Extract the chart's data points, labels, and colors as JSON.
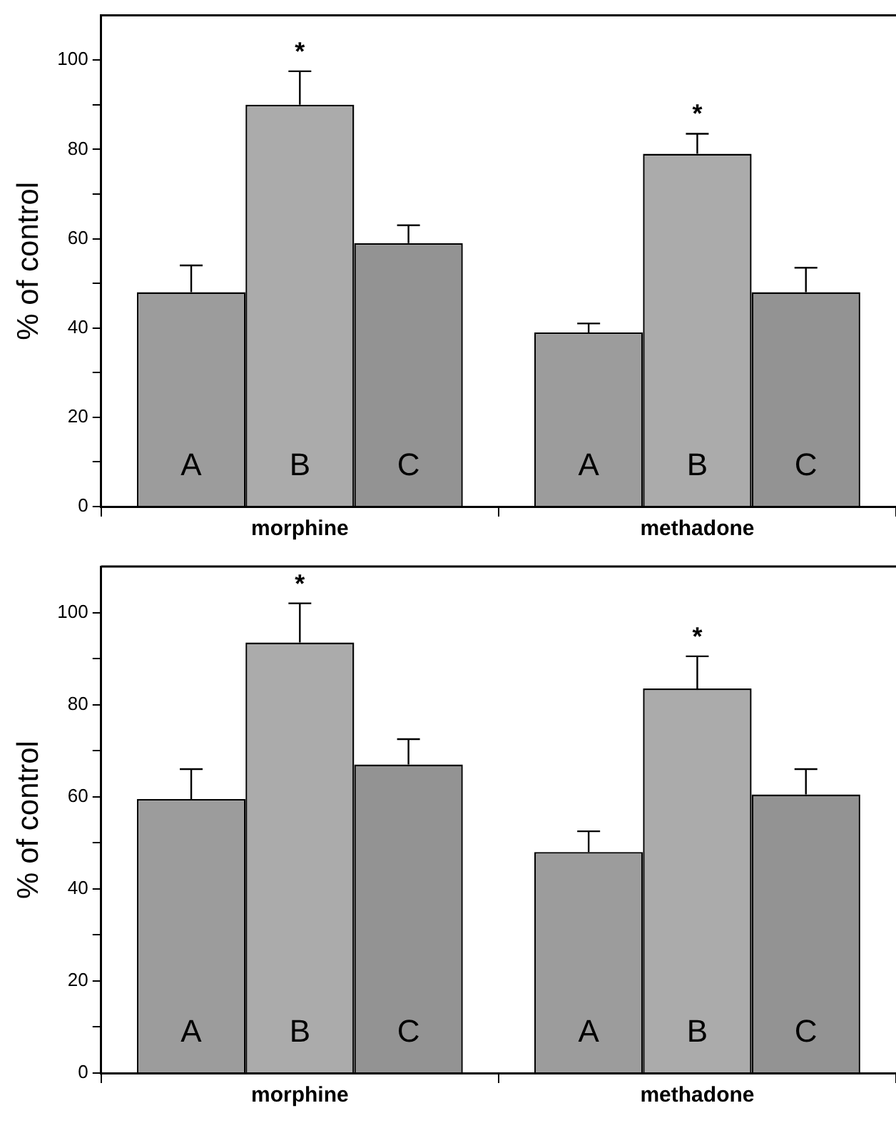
{
  "chart_data": [
    {
      "type": "bar",
      "ylabel": "% of control",
      "categories": [
        "morphine",
        "methadone"
      ],
      "ylim": [
        0,
        110
      ],
      "yticks": [
        0,
        {
          "value": 10,
          "label": null
        },
        20,
        {
          "value": 30,
          "label": null
        },
        40,
        {
          "value": 50,
          "label": null
        },
        60,
        {
          "value": 70,
          "label": null
        },
        80,
        {
          "value": 90,
          "label": null
        },
        100
      ],
      "grid": false,
      "legend": false,
      "series": [
        {
          "name": "A",
          "color": "#9c9c9c",
          "values": [
            48,
            39
          ],
          "errors": [
            [
              48,
              54
            ],
            [
              39,
              41
            ]
          ]
        },
        {
          "name": "B",
          "color": "#ababab",
          "values": [
            90,
            79
          ],
          "errors": [
            [
              90,
              97.5
            ],
            [
              79,
              83.5
            ]
          ]
        },
        {
          "name": "C",
          "color": "#939393",
          "values": [
            59,
            48
          ],
          "errors": [
            [
              59,
              63
            ],
            [
              48,
              53.5
            ]
          ]
        }
      ],
      "annotations": [
        "*",
        "*"
      ]
    },
    {
      "type": "bar",
      "ylabel": "% of control",
      "categories": [
        "morphine",
        "methadone"
      ],
      "ylim": [
        0,
        110
      ],
      "yticks": [
        0,
        {
          "value": 10,
          "label": null
        },
        20,
        {
          "value": 30,
          "label": null
        },
        40,
        {
          "value": 50,
          "label": null
        },
        60,
        {
          "value": 70,
          "label": null
        },
        80,
        {
          "value": 90,
          "label": null
        },
        100
      ],
      "grid": false,
      "legend": false,
      "series": [
        {
          "name": "A",
          "color": "#9c9c9c",
          "values": [
            59.5,
            48
          ],
          "errors": [
            [
              59.5,
              66
            ],
            [
              48,
              52.5
            ]
          ]
        },
        {
          "name": "B",
          "color": "#ababab",
          "values": [
            93.5,
            83.5
          ],
          "errors": [
            [
              93.5,
              102
            ],
            [
              83.5,
              90.5
            ]
          ]
        },
        {
          "name": "C",
          "color": "#939393",
          "values": [
            67,
            60.5
          ],
          "errors": [
            [
              67,
              72.5
            ],
            [
              60.5,
              66
            ]
          ]
        }
      ],
      "annotations": [
        "*",
        "*"
      ]
    }
  ]
}
